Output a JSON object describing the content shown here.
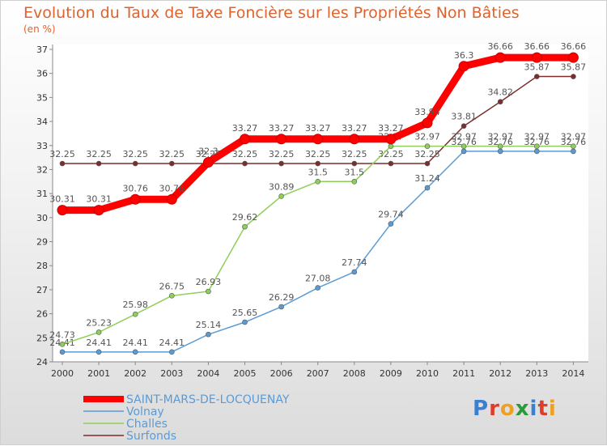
{
  "title": "Evolution du Taux de Taxe Foncière sur les Propriétés Non Bâties",
  "unit": "(en %)",
  "logo": "Proxiti",
  "colors": {
    "SAINT-MARS-DE-LOCQUENAY": "#ff0000",
    "Volnay": "#5b9bd5",
    "Challes": "#8fce5a",
    "Surfonds": "#7a2e2e"
  },
  "chart_data": {
    "type": "line",
    "x": [
      "2000",
      "2001",
      "2002",
      "2003",
      "2004",
      "2005",
      "2006",
      "2007",
      "2008",
      "2009",
      "2010",
      "2011",
      "2012",
      "2013",
      "2014"
    ],
    "ylim": [
      24,
      37
    ],
    "yticks": [
      24,
      25,
      26,
      27,
      28,
      29,
      30,
      31,
      32,
      33,
      34,
      35,
      36,
      37
    ],
    "grid": false,
    "legend": "bottom-left",
    "series": [
      {
        "name": "Surfonds",
        "values": [
          32.25,
          32.25,
          32.25,
          32.25,
          32.25,
          32.25,
          32.25,
          32.25,
          32.25,
          32.25,
          32.25,
          33.81,
          34.82,
          35.87,
          35.87
        ],
        "labels": [
          "32.25",
          "32.25",
          "32.25",
          "32.25",
          "32.25",
          "32.25",
          "32.25",
          "32.25",
          "32.25",
          "32.25",
          "32.25",
          "33.81",
          "34.82",
          "35.87",
          "35.87"
        ]
      },
      {
        "name": "Volnay",
        "values": [
          24.41,
          24.41,
          24.41,
          24.41,
          25.14,
          25.65,
          26.29,
          27.08,
          27.74,
          29.74,
          31.24,
          32.76,
          32.76,
          32.76,
          32.76
        ],
        "labels": [
          "24.41",
          "24.41",
          "24.41",
          "24.41",
          "25.14",
          "25.65",
          "26.29",
          "27.08",
          "27.74",
          "29.74",
          "31.24",
          "32.76",
          "32.76",
          "32.76",
          "32.76"
        ]
      },
      {
        "name": "Challes",
        "values": [
          24.73,
          25.23,
          25.98,
          26.75,
          26.93,
          29.62,
          30.89,
          31.5,
          31.5,
          32.97,
          32.97,
          32.97,
          32.97,
          32.97,
          32.97
        ],
        "labels": [
          "24.73",
          "25.23",
          "25.98",
          "26.75",
          "26.93",
          "29.62",
          "30.89",
          "31.5",
          "31.5",
          "32.97",
          "32.97",
          "32.97",
          "32.97",
          "32.97",
          "32.97"
        ]
      },
      {
        "name": "SAINT-MARS-DE-LOCQUENAY",
        "values": [
          30.31,
          30.31,
          30.76,
          30.76,
          32.3,
          33.27,
          33.27,
          33.27,
          33.27,
          33.27,
          33.94,
          36.3,
          36.66,
          36.66,
          36.66
        ],
        "labels": [
          "30.31",
          "30.31",
          "30.76",
          "30.76",
          "32.3",
          "33.27",
          "33.27",
          "33.27",
          "33.27",
          "33.27",
          "33.94",
          "36.3",
          "36.66",
          "36.66",
          "36.66"
        ]
      }
    ],
    "legend_order": [
      "SAINT-MARS-DE-LOCQUENAY",
      "Volnay",
      "Challes",
      "Surfonds"
    ]
  }
}
